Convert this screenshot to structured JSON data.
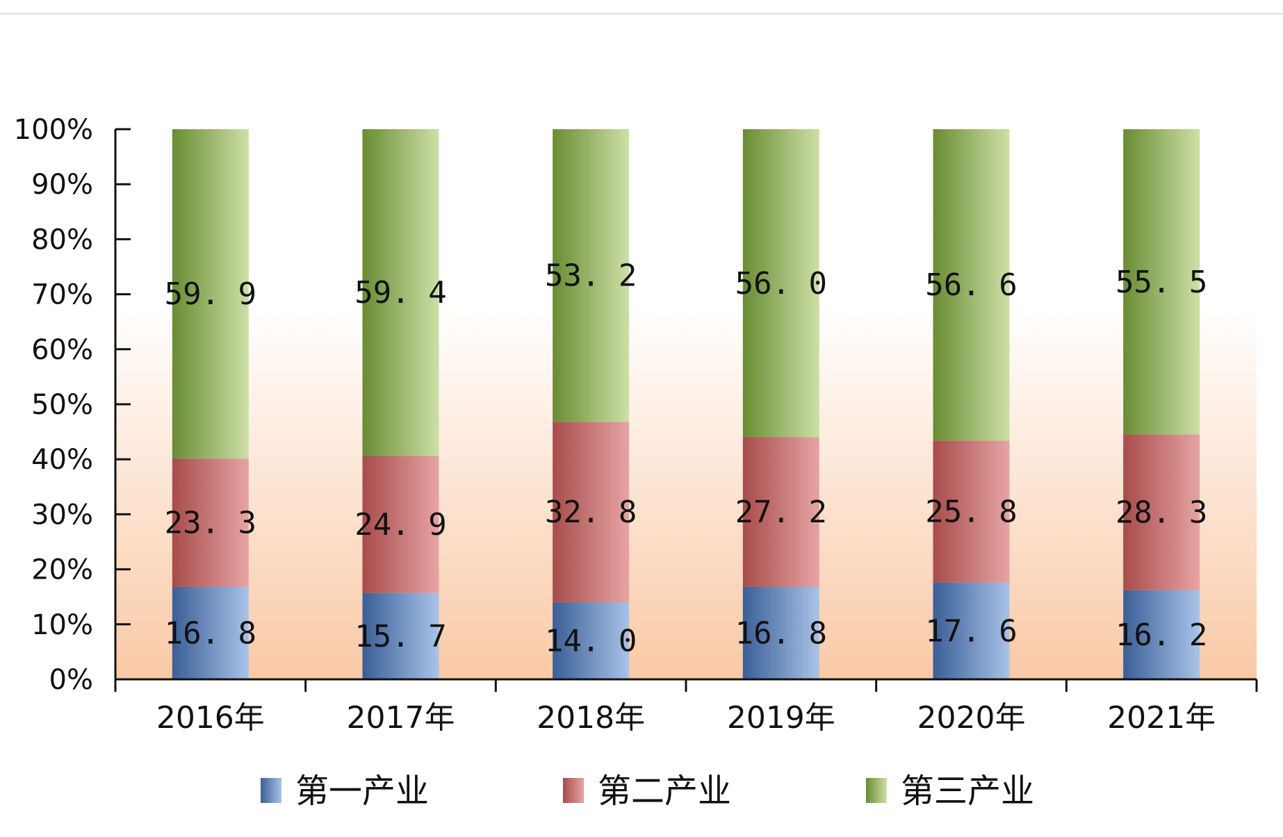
{
  "chart_data": {
    "type": "bar",
    "stacked": true,
    "categories": [
      "2016年",
      "2017年",
      "2018年",
      "2019年",
      "2020年",
      "2021年"
    ],
    "series": [
      {
        "name": "第一产业",
        "values": [
          16.8,
          15.7,
          14.0,
          16.8,
          17.6,
          16.2
        ],
        "labels": [
          "16. 8",
          "15. 7",
          "14. 0",
          "16. 8",
          "17. 6",
          "16. 2"
        ],
        "color": "#5b84c0"
      },
      {
        "name": "第二产业",
        "values": [
          23.3,
          24.9,
          32.8,
          27.2,
          25.8,
          28.3
        ],
        "labels": [
          "23. 3",
          "24. 9",
          "32. 8",
          "27. 2",
          "25. 8",
          "28. 3"
        ],
        "color": "#c96e6e"
      },
      {
        "name": "第三产业",
        "values": [
          59.9,
          59.4,
          53.2,
          56.0,
          56.6,
          55.5
        ],
        "labels": [
          "59. 9",
          "59. 4",
          "53. 2",
          "56. 0",
          "56. 6",
          "55. 5"
        ],
        "color": "#9ab866"
      }
    ],
    "ylim": [
      0,
      100
    ],
    "yticks": [
      "0%",
      "10%",
      "20%",
      "30%",
      "40%",
      "50%",
      "60%",
      "70%",
      "80%",
      "90%",
      "100%"
    ],
    "legend_position": "bottom",
    "grid": false
  }
}
